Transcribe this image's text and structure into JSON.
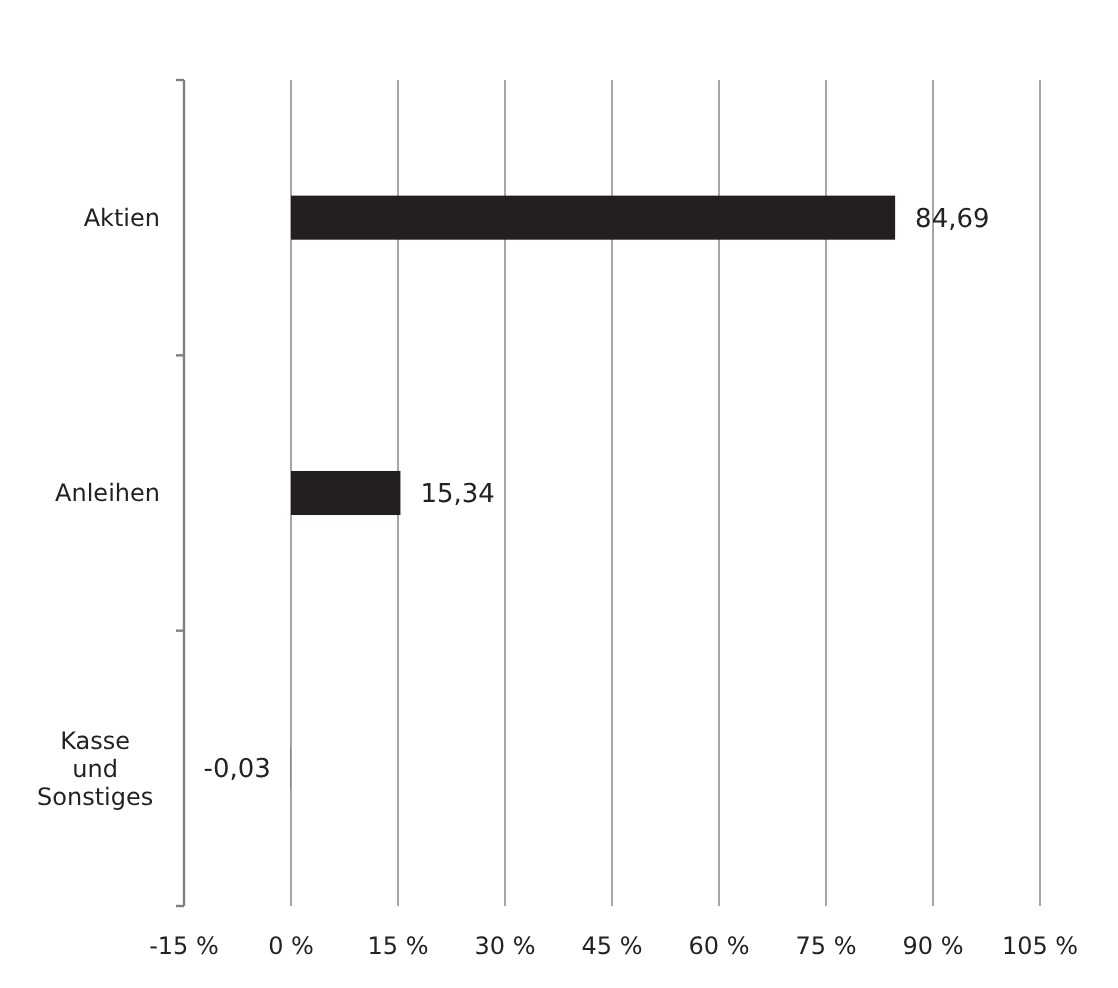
{
  "chart_data": {
    "type": "bar",
    "orientation": "horizontal",
    "categories": [
      "Aktien",
      "Anleihen",
      "Kasse und Sonstiges"
    ],
    "values": [
      84.69,
      15.34,
      -0.03
    ],
    "color": "#231f20",
    "value_labels": [
      "84,69",
      "15,34",
      "-0,03"
    ],
    "xlim": [
      -15,
      105
    ],
    "xticks": [
      {
        "value": -15,
        "label": "-15 %"
      },
      {
        "value": 0,
        "label": "0 %"
      },
      {
        "value": 15,
        "label": "15 %"
      },
      {
        "value": 30,
        "label": "30 %"
      },
      {
        "value": 45,
        "label": "45 %"
      },
      {
        "value": 60,
        "label": "60 %"
      },
      {
        "value": 75,
        "label": "75 %"
      },
      {
        "value": 90,
        "label": "90 %"
      },
      {
        "value": 105,
        "label": "105 %"
      }
    ],
    "grid": "x"
  }
}
